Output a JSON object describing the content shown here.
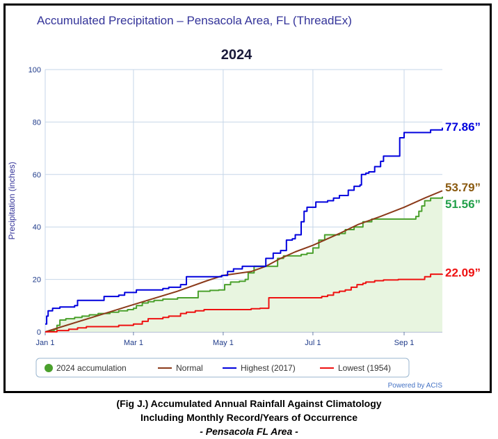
{
  "header": {
    "title": "Accumulated Precipitation – Pensacola Area, FL (ThreadEx)",
    "subtitle": "2024",
    "credit": "Powered by ACIS"
  },
  "caption": {
    "line1": "(Fig J.) Accumulated Annual Rainfall Against  Climatology",
    "line2": "Including Monthly Record/Years of Occurrence",
    "line3": "- Pensacola FL Area -"
  },
  "colors": {
    "accumulation_2024": "#4aa02c",
    "normal": "#8b3a1a",
    "highest": "#0000dd",
    "lowest": "#ee1111",
    "fill_2024": "#e8f5e0",
    "grid": "#c6d6e8",
    "title": "#333399",
    "axis_text": "#1f3b8a"
  },
  "chart_data": {
    "type": "line",
    "title": "2024",
    "xlabel": "",
    "ylabel": "Precipitation (inches)",
    "x_unit": "day of year",
    "xlim": [
      0,
      270
    ],
    "ylim": [
      0,
      100
    ],
    "y_ticks": [
      0,
      20,
      40,
      60,
      80,
      100
    ],
    "x_ticks": [
      {
        "label": "Jan 1",
        "day": 0
      },
      {
        "label": "Mar 1",
        "day": 60
      },
      {
        "label": "May 1",
        "day": 121
      },
      {
        "label": "Jul 1",
        "day": 182
      },
      {
        "label": "Sep 1",
        "day": 244
      }
    ],
    "grid": true,
    "legend": "bottom",
    "series": [
      {
        "name": "2024 accumulation",
        "color": "#4aa02c",
        "end_label": "51.56”",
        "points": [
          [
            0,
            0
          ],
          [
            3,
            0.3
          ],
          [
            6,
            1
          ],
          [
            8,
            2.5
          ],
          [
            10,
            4.5
          ],
          [
            14,
            5
          ],
          [
            20,
            5.5
          ],
          [
            25,
            6
          ],
          [
            30,
            6.5
          ],
          [
            36,
            7
          ],
          [
            44,
            7.5
          ],
          [
            50,
            8
          ],
          [
            56,
            8.5
          ],
          [
            60,
            9
          ],
          [
            62,
            10
          ],
          [
            66,
            11
          ],
          [
            70,
            11.5
          ],
          [
            74,
            12
          ],
          [
            80,
            12.5
          ],
          [
            90,
            13
          ],
          [
            100,
            13
          ],
          [
            104,
            15.5
          ],
          [
            112,
            15.8
          ],
          [
            118,
            16
          ],
          [
            122,
            18
          ],
          [
            126,
            19
          ],
          [
            132,
            19.3
          ],
          [
            136,
            20
          ],
          [
            138,
            22.5
          ],
          [
            142,
            25
          ],
          [
            150,
            25
          ],
          [
            155,
            25
          ],
          [
            158,
            28
          ],
          [
            162,
            29
          ],
          [
            170,
            29
          ],
          [
            174,
            29.5
          ],
          [
            178,
            30
          ],
          [
            182,
            32
          ],
          [
            186,
            35
          ],
          [
            190,
            37
          ],
          [
            200,
            37.5
          ],
          [
            204,
            39
          ],
          [
            210,
            40
          ],
          [
            216,
            42
          ],
          [
            222,
            43
          ],
          [
            230,
            43
          ],
          [
            240,
            43
          ],
          [
            248,
            43
          ],
          [
            252,
            44
          ],
          [
            254,
            46
          ],
          [
            256,
            48
          ],
          [
            258,
            50
          ],
          [
            262,
            51
          ],
          [
            270,
            51.56
          ]
        ]
      },
      {
        "name": "Normal",
        "color": "#8b3a1a",
        "end_label": "53.79”",
        "points": [
          [
            0,
            0
          ],
          [
            30,
            5.2
          ],
          [
            60,
            10.4
          ],
          [
            90,
            15.5
          ],
          [
            110,
            19.5
          ],
          [
            121,
            21.5
          ],
          [
            140,
            23
          ],
          [
            150,
            25
          ],
          [
            160,
            28
          ],
          [
            170,
            30.5
          ],
          [
            182,
            33
          ],
          [
            200,
            37.5
          ],
          [
            213,
            41
          ],
          [
            228,
            44
          ],
          [
            244,
            47.5
          ],
          [
            258,
            51
          ],
          [
            270,
            53.79
          ]
        ]
      },
      {
        "name": "Highest (2017)",
        "color": "#0000dd",
        "end_label": "77.86”",
        "points": [
          [
            0,
            3
          ],
          [
            1,
            6
          ],
          [
            2,
            8
          ],
          [
            5,
            9
          ],
          [
            10,
            9.5
          ],
          [
            20,
            10
          ],
          [
            22,
            12
          ],
          [
            38,
            12
          ],
          [
            40,
            13.5
          ],
          [
            50,
            14
          ],
          [
            54,
            15
          ],
          [
            60,
            15
          ],
          [
            62,
            16
          ],
          [
            80,
            16.5
          ],
          [
            84,
            17
          ],
          [
            92,
            18
          ],
          [
            96,
            21
          ],
          [
            112,
            21
          ],
          [
            120,
            21.5
          ],
          [
            124,
            23
          ],
          [
            128,
            24
          ],
          [
            134,
            25
          ],
          [
            148,
            25
          ],
          [
            150,
            28
          ],
          [
            155,
            30
          ],
          [
            160,
            31
          ],
          [
            164,
            35
          ],
          [
            168,
            35.5
          ],
          [
            170,
            37
          ],
          [
            174,
            42
          ],
          [
            176,
            46
          ],
          [
            178,
            47.5
          ],
          [
            182,
            47.5
          ],
          [
            184,
            49.5
          ],
          [
            192,
            50
          ],
          [
            196,
            51
          ],
          [
            200,
            52
          ],
          [
            206,
            54
          ],
          [
            210,
            55.5
          ],
          [
            214,
            56
          ],
          [
            215,
            60
          ],
          [
            218,
            60.5
          ],
          [
            220,
            61
          ],
          [
            224,
            63
          ],
          [
            228,
            65
          ],
          [
            230,
            67
          ],
          [
            240,
            67
          ],
          [
            241,
            74
          ],
          [
            244,
            76
          ],
          [
            260,
            76
          ],
          [
            262,
            77
          ],
          [
            270,
            77.86
          ]
        ]
      },
      {
        "name": "Lowest (1954)",
        "color": "#ee1111",
        "end_label": "22.09”",
        "points": [
          [
            0,
            0
          ],
          [
            8,
            0.5
          ],
          [
            16,
            1
          ],
          [
            22,
            1.5
          ],
          [
            28,
            2
          ],
          [
            48,
            2
          ],
          [
            50,
            2.5
          ],
          [
            60,
            3
          ],
          [
            66,
            4
          ],
          [
            70,
            5
          ],
          [
            78,
            5
          ],
          [
            80,
            5.5
          ],
          [
            84,
            6
          ],
          [
            90,
            6
          ],
          [
            92,
            7
          ],
          [
            96,
            7.5
          ],
          [
            102,
            8
          ],
          [
            108,
            8.5
          ],
          [
            126,
            8.5
          ],
          [
            140,
            8.8
          ],
          [
            146,
            9
          ],
          [
            150,
            9
          ],
          [
            152,
            13
          ],
          [
            178,
            13
          ],
          [
            188,
            13.5
          ],
          [
            192,
            14
          ],
          [
            196,
            15
          ],
          [
            200,
            15.5
          ],
          [
            204,
            16
          ],
          [
            208,
            17
          ],
          [
            212,
            18
          ],
          [
            216,
            18.5
          ],
          [
            218,
            19
          ],
          [
            224,
            19.5
          ],
          [
            230,
            19.8
          ],
          [
            240,
            20
          ],
          [
            256,
            20
          ],
          [
            258,
            21
          ],
          [
            262,
            22
          ],
          [
            270,
            22.09
          ]
        ]
      }
    ]
  }
}
